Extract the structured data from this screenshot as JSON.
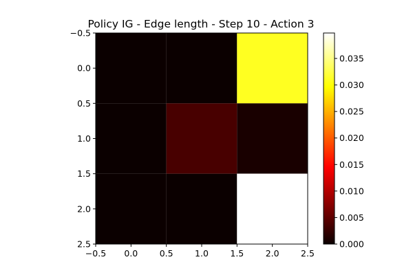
{
  "chart_data": {
    "type": "heatmap",
    "title": "Policy IG - Edge length - Step 10 - Action 3",
    "colormap": "hot",
    "xlim": [
      -0.5,
      2.5
    ],
    "ylim": [
      2.5,
      -0.5
    ],
    "x_ticks": [
      -0.5,
      0.0,
      0.5,
      1.0,
      1.5,
      2.0,
      2.5
    ],
    "y_ticks": [
      -0.5,
      0.0,
      0.5,
      1.0,
      1.5,
      2.0,
      2.5
    ],
    "x_tick_labels": [
      "−0.5",
      "0.0",
      "0.5",
      "1.0",
      "1.5",
      "2.0",
      "2.5"
    ],
    "y_tick_labels": [
      "−0.5",
      "0.0",
      "0.5",
      "1.0",
      "1.5",
      "2.0",
      "2.5"
    ],
    "matrix": [
      [
        0.0,
        0.0,
        0.031
      ],
      [
        0.0,
        0.0035,
        0.0008
      ],
      [
        0.0,
        0.0,
        0.0398
      ]
    ],
    "colorbar": {
      "min": 0.0,
      "max": 0.0398,
      "ticks": [
        0.0,
        0.005,
        0.01,
        0.015,
        0.02,
        0.025,
        0.03,
        0.035
      ],
      "tick_labels": [
        "0.000",
        "0.005",
        "0.010",
        "0.015",
        "0.020",
        "0.025",
        "0.030",
        "0.035"
      ]
    }
  }
}
